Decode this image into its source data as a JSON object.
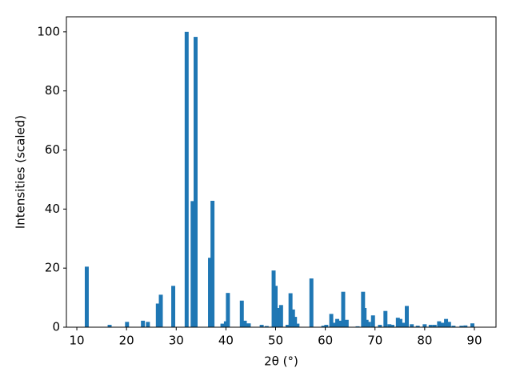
{
  "chart_data": {
    "type": "bar",
    "x_label": "2θ (°)",
    "y_label": "Intensities (scaled)",
    "color": "#1f77b4",
    "x": [
      12.0,
      16.6,
      20.1,
      23.3,
      24.3,
      26.3,
      26.9,
      29.4,
      32.1,
      33.3,
      33.9,
      36.8,
      37.3,
      39.3,
      40.0,
      40.4,
      43.2,
      43.8,
      44.6,
      47.2,
      48.2,
      49.6,
      50.0,
      50.4,
      50.8,
      51.1,
      52.4,
      53.0,
      53.5,
      53.9,
      54.4,
      57.2,
      59.6,
      60.2,
      61.2,
      61.8,
      62.4,
      62.9,
      63.6,
      64.3,
      66.5,
      67.6,
      67.9,
      68.3,
      68.8,
      69.6,
      71.0,
      72.1,
      72.9,
      73.5,
      74.6,
      75.1,
      75.8,
      76.4,
      77.4,
      78.6,
      80.0,
      81.2,
      82.0,
      82.9,
      83.6,
      84.3,
      84.9,
      85.8,
      87.4,
      88.2,
      89.6
    ],
    "values": [
      20.5,
      0.8,
      1.8,
      2.2,
      1.8,
      8.0,
      11.0,
      14.0,
      100,
      42.7,
      98.3,
      23.5,
      42.8,
      1.2,
      2.0,
      11.6,
      9.0,
      2.2,
      1.3,
      0.8,
      0.4,
      19.2,
      14.0,
      2.0,
      6.5,
      7.5,
      0.8,
      11.5,
      6.0,
      3.5,
      1.2,
      16.5,
      0.5,
      0.8,
      4.5,
      1.5,
      2.8,
      2.2,
      12.0,
      2.5,
      0.3,
      12.0,
      6.5,
      2.5,
      1.8,
      4.0,
      0.8,
      5.5,
      1.0,
      0.8,
      3.2,
      2.8,
      1.5,
      7.2,
      1.0,
      0.5,
      1.0,
      0.8,
      0.8,
      2.0,
      1.5,
      2.8,
      1.8,
      0.5,
      0.5,
      0.6,
      1.3
    ],
    "xlim": [
      7.9,
      94.35
    ],
    "ylim": [
      0,
      105.1
    ],
    "xticks": [
      10,
      20,
      30,
      40,
      50,
      60,
      70,
      80,
      90
    ],
    "yticks": [
      0,
      20,
      40,
      60,
      80,
      100
    ]
  }
}
